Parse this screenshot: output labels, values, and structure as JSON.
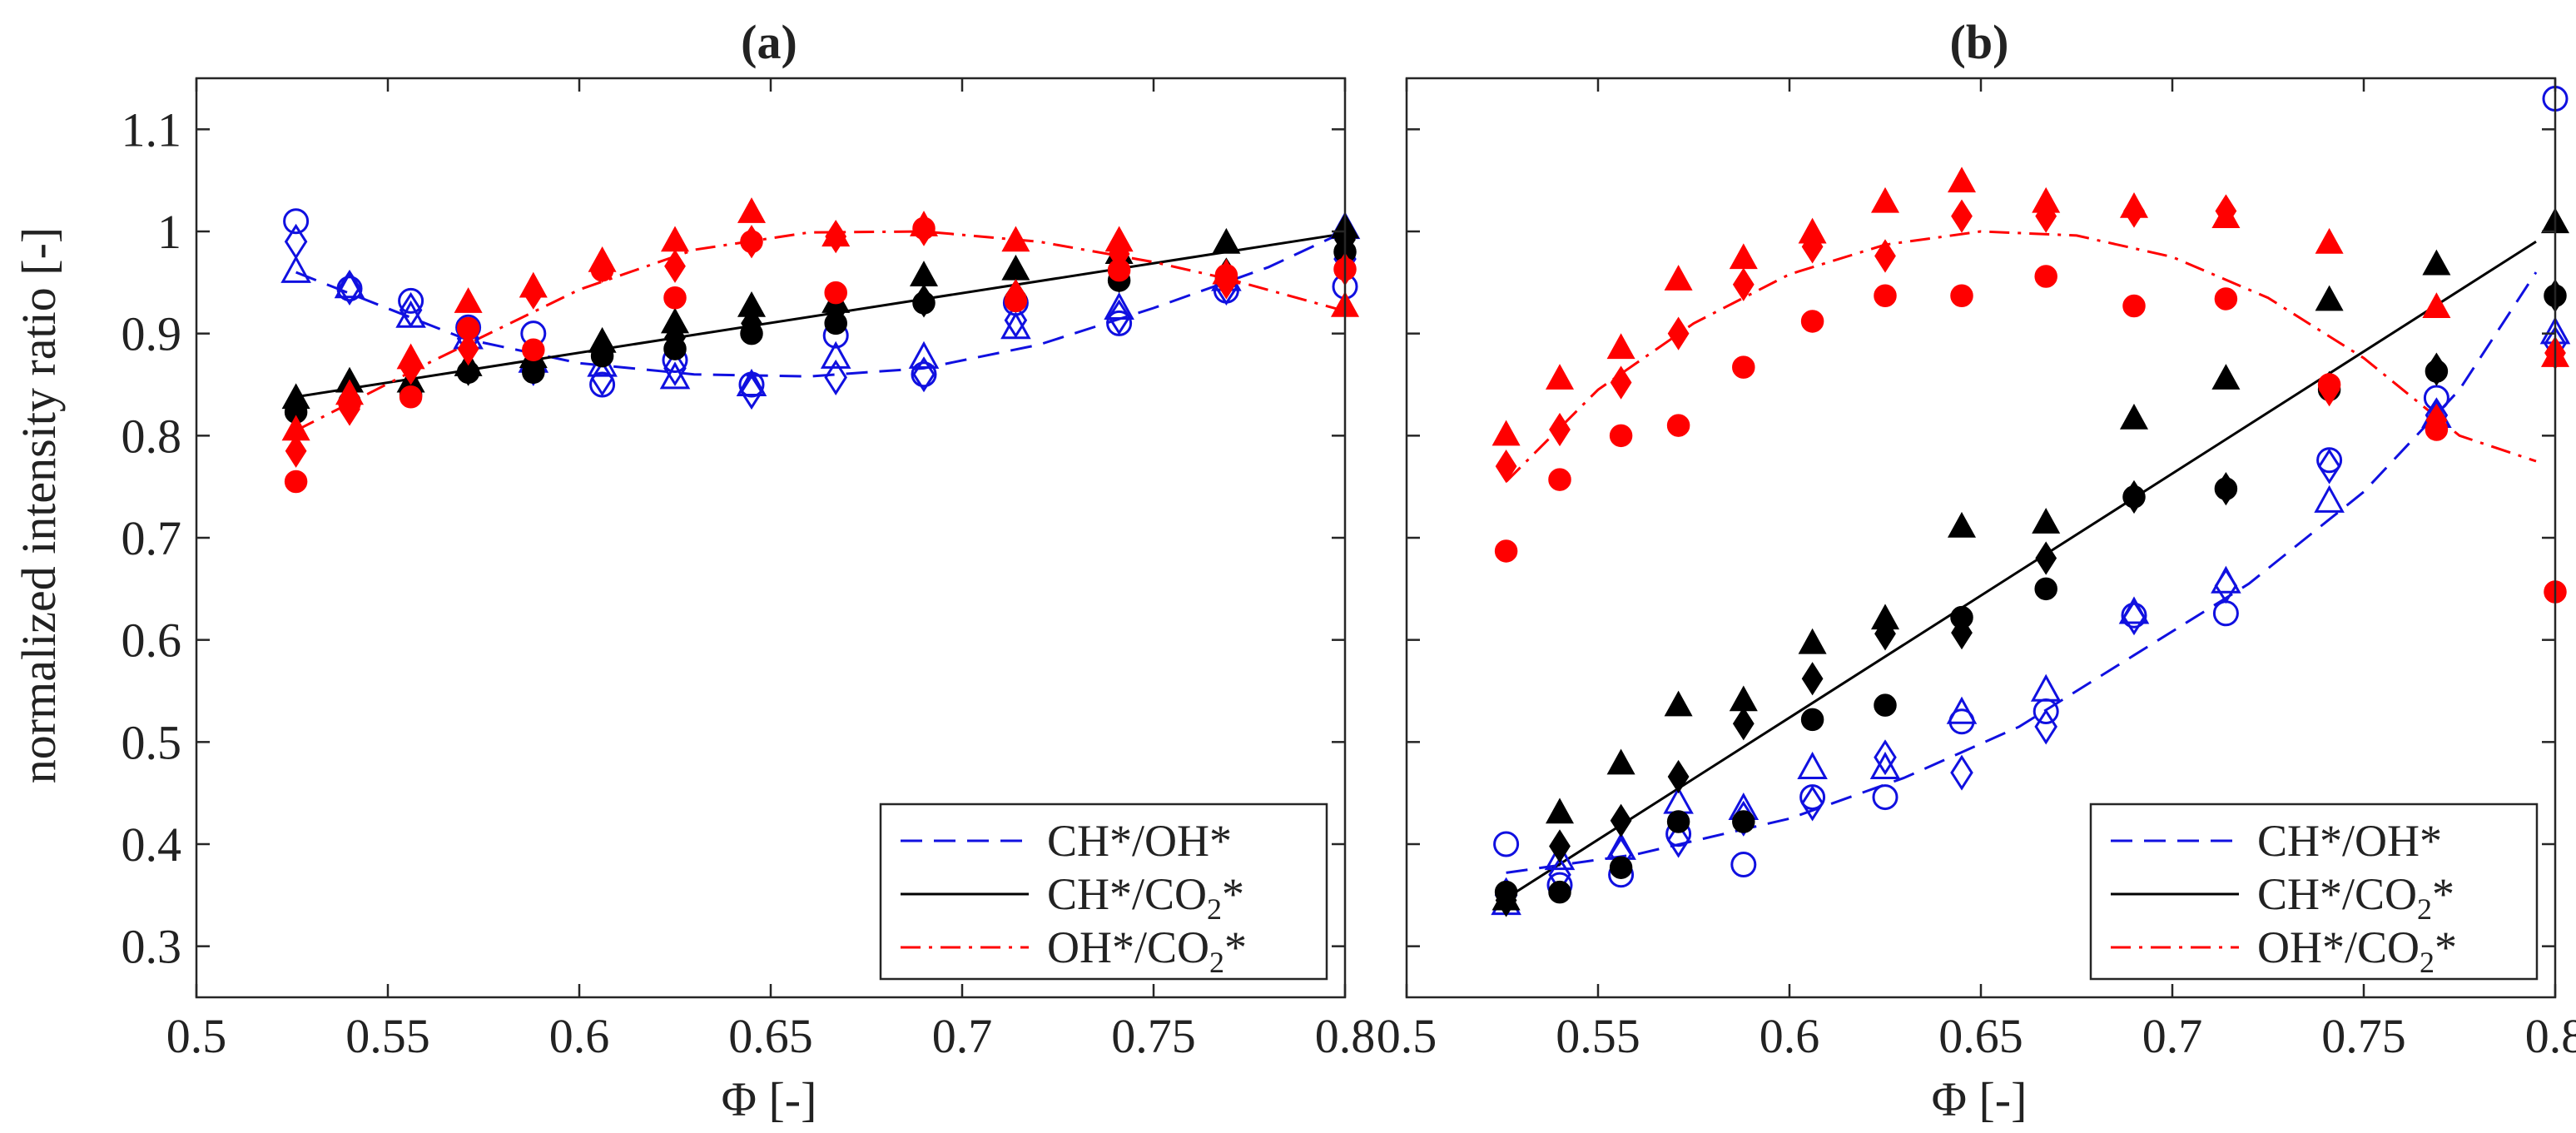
{
  "colors": {
    "ch_oh": "#1010e0",
    "ch_co2": "#000000",
    "oh_co2": "#ff0000"
  },
  "chart_data": [
    {
      "type": "scatter",
      "title": "(a)",
      "xlabel": "Φ [-]",
      "ylabel": "normalized intensity ratio [-]",
      "xlim": [
        0.5,
        0.8
      ],
      "ylim": [
        0.25,
        1.15
      ],
      "xticks": [
        "0.5",
        "0.55",
        "0.6",
        "0.65",
        "0.7",
        "0.75",
        "0.8"
      ],
      "yticks": [
        "0.3",
        "0.4",
        "0.5",
        "0.6",
        "0.7",
        "0.8",
        "0.9",
        "1",
        "1.1"
      ],
      "legend": {
        "location": "bottom-right",
        "entries": [
          {
            "series": "ch_oh",
            "prefix": "CH*/OH*",
            "sub": "",
            "suffix": ""
          },
          {
            "series": "ch_co2",
            "prefix": "CH*/CO",
            "sub": "2",
            "suffix": "*"
          },
          {
            "series": "oh_co2",
            "prefix": "OH*/CO",
            "sub": "2",
            "suffix": "*"
          }
        ]
      },
      "x": [
        0.526,
        0.54,
        0.556,
        0.571,
        0.588,
        0.606,
        0.625,
        0.645,
        0.667,
        0.69,
        0.714,
        0.741,
        0.769,
        0.8
      ],
      "series": [
        {
          "name": "CH*/OH*",
          "key": "ch_oh",
          "filled": false,
          "line_style": "dashed",
          "fit": [
            [
              0.526,
              0.96
            ],
            [
              0.57,
              0.895
            ],
            [
              0.6,
              0.871
            ],
            [
              0.63,
              0.86
            ],
            [
              0.66,
              0.858
            ],
            [
              0.69,
              0.866
            ],
            [
              0.72,
              0.889
            ],
            [
              0.75,
              0.925
            ],
            [
              0.78,
              0.965
            ],
            [
              0.8,
              1.0
            ]
          ],
          "markers": {
            "triangle": [
              0.96,
              0.945,
              0.916,
              0.895,
              0.872,
              0.868,
              0.856,
              0.849,
              0.876,
              0.876,
              0.905,
              0.924,
              0.952,
              1.003
            ],
            "diamond": [
              0.99,
              0.945,
              0.923,
              0.895,
              0.866,
              0.856,
              0.866,
              0.843,
              0.857,
              0.86,
              0.913,
              0.916,
              0.945,
              0.973
            ],
            "circle": [
              1.01,
              0.944,
              0.932,
              0.906,
              0.9,
              0.85,
              0.874,
              0.85,
              0.898,
              0.86,
              0.93,
              0.91,
              0.942,
              0.946
            ]
          }
        },
        {
          "name": "CH*/CO2*",
          "key": "ch_co2",
          "filled": true,
          "line_style": "solid",
          "fit": [
            [
              0.526,
              0.838
            ],
            [
              0.8,
              0.998
            ]
          ],
          "markers": {
            "triangle": [
              0.836,
              0.852,
              0.852,
              0.868,
              0.876,
              0.891,
              0.91,
              0.926,
              0.93,
              0.956,
              0.962,
              0.978,
              0.988,
              1.003
            ],
            "diamond": [
              0.826,
              0.847,
              0.844,
              0.865,
              0.868,
              0.885,
              0.896,
              0.91,
              0.923,
              0.932,
              0.937,
              0.956,
              0.958,
              0.992
            ],
            "circle": [
              0.823,
              0.833,
              0.84,
              0.862,
              0.862,
              0.878,
              0.885,
              0.9,
              0.91,
              0.93,
              0.933,
              0.952,
              0.954,
              0.98
            ]
          }
        },
        {
          "name": "OH*/CO2*",
          "key": "oh_co2",
          "filled": true,
          "line_style": "dashdot",
          "fit": [
            [
              0.526,
              0.805
            ],
            [
              0.56,
              0.87
            ],
            [
              0.6,
              0.943
            ],
            [
              0.63,
              0.982
            ],
            [
              0.66,
              0.999
            ],
            [
              0.69,
              1.0
            ],
            [
              0.72,
              0.99
            ],
            [
              0.75,
              0.97
            ],
            [
              0.77,
              0.953
            ],
            [
              0.8,
              0.922
            ]
          ],
          "markers": {
            "triangle": [
              0.805,
              0.84,
              0.875,
              0.93,
              0.945,
              0.97,
              0.99,
              1.018,
              0.995,
              1.005,
              0.99,
              0.99,
              0.958,
              0.926
            ],
            "diamond": [
              0.785,
              0.826,
              0.866,
              0.885,
              0.94,
              0.966,
              0.966,
              0.99,
              0.995,
              1.002,
              0.937,
              0.978,
              0.95,
              0.963
            ],
            "circle": [
              0.755,
              0.832,
              0.838,
              0.905,
              0.884,
              0.962,
              0.935,
              0.99,
              0.94,
              1.003,
              0.932,
              0.962,
              0.957,
              0.963
            ]
          }
        }
      ]
    },
    {
      "type": "scatter",
      "title": "(b)",
      "xlabel": "Φ [-]",
      "ylabel": "",
      "xlim": [
        0.5,
        0.8
      ],
      "ylim": [
        0.25,
        1.15
      ],
      "xticks": [
        "0.5",
        "0.55",
        "0.6",
        "0.65",
        "0.7",
        "0.75",
        "0.8"
      ],
      "yticks": [],
      "legend": {
        "location": "bottom-right",
        "entries": [
          {
            "series": "ch_oh",
            "prefix": "CH*/OH*",
            "sub": "",
            "suffix": ""
          },
          {
            "series": "ch_co2",
            "prefix": "CH*/CO",
            "sub": "2",
            "suffix": "*"
          },
          {
            "series": "oh_co2",
            "prefix": "OH*/CO",
            "sub": "2",
            "suffix": "*"
          }
        ]
      },
      "x": [
        0.526,
        0.54,
        0.556,
        0.571,
        0.588,
        0.606,
        0.625,
        0.645,
        0.667,
        0.69,
        0.714,
        0.741,
        0.769,
        0.8
      ],
      "series": [
        {
          "name": "CH*/OH*",
          "key": "ch_oh",
          "filled": false,
          "line_style": "dashed",
          "fit": [
            [
              0.526,
              0.372
            ],
            [
              0.56,
              0.39
            ],
            [
              0.6,
              0.425
            ],
            [
              0.63,
              0.465
            ],
            [
              0.66,
              0.515
            ],
            [
              0.69,
              0.585
            ],
            [
              0.72,
              0.655
            ],
            [
              0.75,
              0.745
            ],
            [
              0.775,
              0.845
            ],
            [
              0.795,
              0.96
            ]
          ],
          "markers": {
            "triangle": [
              0.341,
              0.385,
              0.395,
              0.44,
              0.434,
              0.474,
              0.474,
              0.528,
              0.55,
              0.626,
              0.656,
              0.735,
              0.818,
              0.9
            ],
            "diamond": [
              0.35,
              0.37,
              0.39,
              0.404,
              0.425,
              0.44,
              0.485,
              0.47,
              0.515,
              0.622,
              0.653,
              0.77,
              0.82,
              0.89
            ],
            "circle": [
              0.4,
              0.36,
              0.37,
              0.41,
              0.38,
              0.446,
              0.446,
              0.52,
              0.53,
              0.624,
              0.626,
              0.776,
              0.837,
              1.13
            ]
          }
        },
        {
          "name": "CH*/CO2*",
          "key": "ch_co2",
          "filled": true,
          "line_style": "solid",
          "fit": [
            [
              0.526,
              0.347
            ],
            [
              0.795,
              0.99
            ]
          ],
          "markers": {
            "triangle": [
              0.345,
              0.43,
              0.478,
              0.535,
              0.54,
              0.596,
              0.62,
              0.71,
              0.714,
              0.816,
              0.855,
              0.932,
              0.967,
              1.008
            ],
            "diamond": [
              0.345,
              0.398,
              0.423,
              0.466,
              0.518,
              0.562,
              0.606,
              0.607,
              0.68,
              0.74,
              0.748,
              0.847,
              0.865,
              0.937
            ],
            "circle": [
              0.353,
              0.353,
              0.377,
              0.422,
              0.422,
              0.522,
              0.536,
              0.622,
              0.65,
              0.74,
              0.748,
              0.845,
              0.863,
              0.937
            ]
          }
        },
        {
          "name": "OH*/CO2*",
          "key": "oh_co2",
          "filled": true,
          "line_style": "dashdot",
          "fit": [
            [
              0.526,
              0.755
            ],
            [
              0.55,
              0.845
            ],
            [
              0.575,
              0.91
            ],
            [
              0.6,
              0.958
            ],
            [
              0.625,
              0.987
            ],
            [
              0.65,
              1.0
            ],
            [
              0.675,
              0.996
            ],
            [
              0.7,
              0.975
            ],
            [
              0.725,
              0.935
            ],
            [
              0.75,
              0.876
            ],
            [
              0.775,
              0.8
            ],
            [
              0.795,
              0.775
            ]
          ],
          "markers": {
            "triangle": [
              0.8,
              0.855,
              0.885,
              0.952,
              0.973,
              0.998,
              1.028,
              1.048,
              1.028,
              1.023,
              1.013,
              0.988,
              0.925,
              0.877
            ],
            "diamond": [
              0.77,
              0.806,
              0.852,
              0.9,
              0.948,
              0.985,
              0.976,
              1.015,
              1.015,
              1.02,
              1.02,
              0.845,
              0.815,
              0.881
            ],
            "circle": [
              0.687,
              0.757,
              0.8,
              0.81,
              0.867,
              0.912,
              0.937,
              0.937,
              0.956,
              0.927,
              0.934,
              0.85,
              0.806,
              0.647
            ]
          }
        }
      ]
    }
  ]
}
